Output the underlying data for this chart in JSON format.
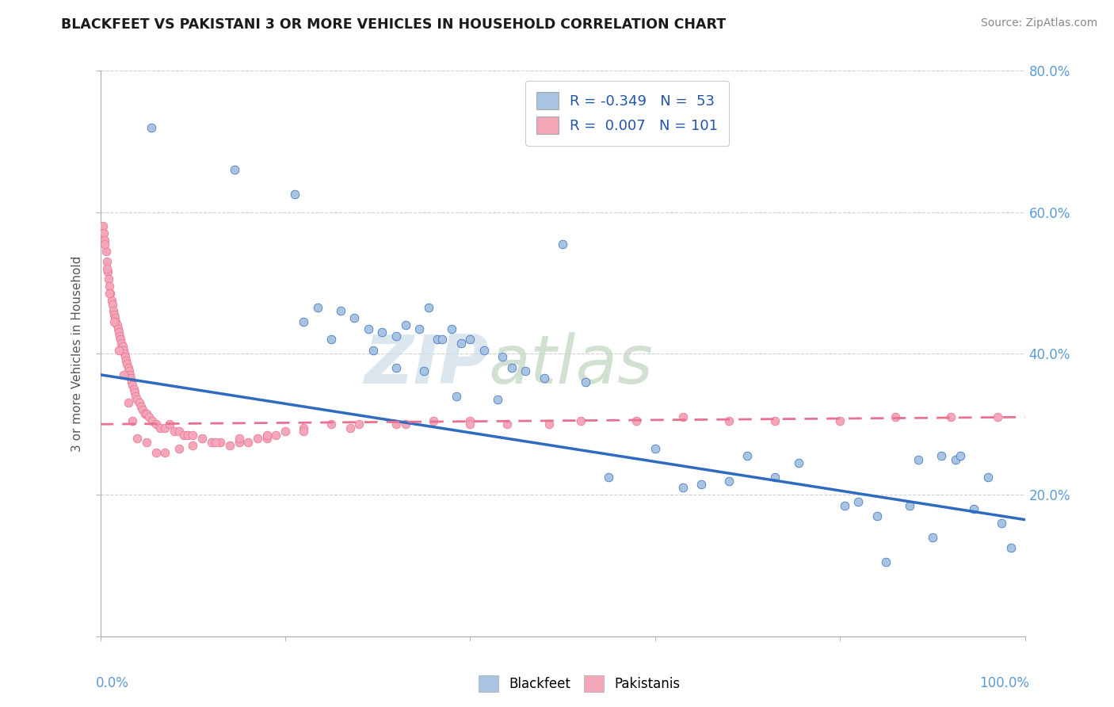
{
  "title": "BLACKFEET VS PAKISTANI 3 OR MORE VEHICLES IN HOUSEHOLD CORRELATION CHART",
  "source": "Source: ZipAtlas.com",
  "ylabel": "3 or more Vehicles in Household",
  "legend_label1": "Blackfeet",
  "legend_label2": "Pakistanis",
  "R1": "-0.349",
  "N1": "53",
  "R2": "0.007",
  "N2": "101",
  "xmin": 0.0,
  "xmax": 100.0,
  "ymin": 0.0,
  "ymax": 80.0,
  "color_blackfeet_scatter": "#a8c4e0",
  "color_pakistani_scatter": "#f4a7b9",
  "color_line_blackfeet": "#2f6bbf",
  "color_line_pakistani": "#e87090",
  "blackfeet_x": [
    5.5,
    14.5,
    21.0,
    23.5,
    26.0,
    27.5,
    29.0,
    30.5,
    32.0,
    33.0,
    34.5,
    35.5,
    36.5,
    37.0,
    38.0,
    39.0,
    40.0,
    41.5,
    43.5,
    44.5,
    46.0,
    48.0,
    50.0,
    52.5,
    55.0,
    60.0,
    63.0,
    65.0,
    68.0,
    70.0,
    73.0,
    75.5,
    80.5,
    82.0,
    84.0,
    85.0,
    87.5,
    88.5,
    90.0,
    91.0,
    92.5,
    93.0,
    94.5,
    96.0,
    97.5,
    98.5,
    22.0,
    25.0,
    29.5,
    32.0,
    35.0,
    38.5,
    43.0
  ],
  "blackfeet_y": [
    72.0,
    66.0,
    62.5,
    46.5,
    46.0,
    45.0,
    43.5,
    43.0,
    42.5,
    44.0,
    43.5,
    46.5,
    42.0,
    42.0,
    43.5,
    41.5,
    42.0,
    40.5,
    39.5,
    38.0,
    37.5,
    36.5,
    55.5,
    36.0,
    22.5,
    26.5,
    21.0,
    21.5,
    22.0,
    25.5,
    22.5,
    24.5,
    18.5,
    19.0,
    17.0,
    10.5,
    18.5,
    25.0,
    14.0,
    25.5,
    25.0,
    25.5,
    18.0,
    22.5,
    16.0,
    12.5,
    44.5,
    42.0,
    40.5,
    38.0,
    37.5,
    34.0,
    33.5
  ],
  "pakistani_x": [
    0.3,
    0.4,
    0.5,
    0.6,
    0.7,
    0.8,
    0.9,
    1.0,
    1.1,
    1.2,
    1.3,
    1.4,
    1.5,
    1.6,
    1.7,
    1.8,
    1.9,
    2.0,
    2.1,
    2.2,
    2.3,
    2.4,
    2.5,
    2.6,
    2.7,
    2.8,
    2.9,
    3.0,
    3.1,
    3.2,
    3.3,
    3.4,
    3.5,
    3.6,
    3.7,
    3.8,
    4.0,
    4.2,
    4.4,
    4.6,
    4.8,
    5.0,
    5.3,
    5.6,
    6.0,
    6.5,
    7.0,
    7.5,
    8.0,
    8.5,
    9.0,
    9.5,
    10.0,
    11.0,
    12.0,
    13.0,
    14.0,
    15.0,
    16.0,
    17.0,
    18.0,
    19.0,
    20.0,
    22.0,
    25.0,
    28.0,
    32.0,
    36.0,
    40.0,
    44.0,
    48.5,
    52.0,
    58.0,
    63.0,
    68.0,
    73.0,
    80.0,
    86.0,
    92.0,
    97.0,
    0.5,
    0.7,
    1.0,
    1.5,
    2.0,
    2.5,
    3.0,
    3.5,
    4.0,
    5.0,
    6.0,
    7.0,
    8.5,
    10.0,
    12.5,
    15.0,
    18.0,
    22.0,
    27.0,
    33.0,
    40.0
  ],
  "pakistani_y": [
    58.0,
    57.0,
    56.0,
    54.5,
    53.0,
    51.5,
    50.5,
    49.5,
    48.5,
    47.5,
    47.0,
    46.0,
    45.5,
    45.0,
    44.5,
    44.0,
    43.5,
    43.0,
    42.5,
    42.0,
    41.5,
    41.0,
    40.5,
    40.0,
    39.5,
    39.0,
    38.5,
    38.0,
    37.5,
    37.0,
    36.5,
    36.0,
    35.5,
    35.0,
    34.5,
    34.0,
    33.5,
    33.0,
    32.5,
    32.0,
    31.5,
    31.5,
    31.0,
    30.5,
    30.0,
    29.5,
    29.5,
    30.0,
    29.0,
    29.0,
    28.5,
    28.5,
    28.5,
    28.0,
    27.5,
    27.5,
    27.0,
    27.5,
    27.5,
    28.0,
    28.0,
    28.5,
    29.0,
    29.5,
    30.0,
    30.0,
    30.0,
    30.5,
    30.5,
    30.0,
    30.0,
    30.5,
    30.5,
    31.0,
    30.5,
    30.5,
    30.5,
    31.0,
    31.0,
    31.0,
    55.5,
    52.0,
    48.5,
    44.5,
    40.5,
    37.0,
    33.0,
    30.5,
    28.0,
    27.5,
    26.0,
    26.0,
    26.5,
    27.0,
    27.5,
    28.0,
    28.5,
    29.0,
    29.5,
    30.0,
    30.0
  ]
}
